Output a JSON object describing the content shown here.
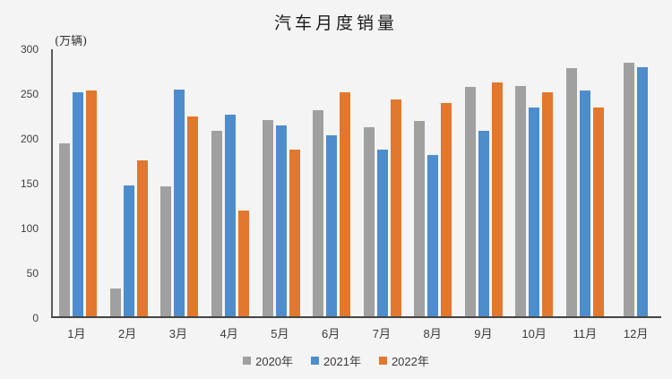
{
  "chart_data": {
    "type": "bar",
    "title": "汽车月度销量",
    "unit_label": "(万辆)",
    "categories": [
      "1月",
      "2月",
      "3月",
      "4月",
      "5月",
      "6月",
      "7月",
      "8月",
      "9月",
      "10月",
      "11月",
      "12月"
    ],
    "series": [
      {
        "name": "2020年",
        "color": "#A0A0A0",
        "values": [
          193,
          31,
          145,
          207,
          219,
          230,
          211,
          218,
          256,
          257,
          277,
          283
        ]
      },
      {
        "name": "2021年",
        "color": "#4E8DCB",
        "values": [
          250,
          146,
          253,
          225,
          213,
          202,
          186,
          180,
          207,
          233,
          252,
          278
        ]
      },
      {
        "name": "2022年",
        "color": "#E2772E",
        "values": [
          252,
          174,
          223,
          118,
          186,
          250,
          242,
          238,
          261,
          250,
          233,
          null
        ]
      }
    ],
    "ylim": [
      0,
      300
    ],
    "ytick_step": 50,
    "yticks": [
      0,
      50,
      100,
      150,
      200,
      250,
      300
    ],
    "grid": false,
    "legend_position": "bottom-center",
    "colors": {
      "background": "#F4F4F4",
      "axis": "#4a4a4a",
      "tick_text": "#3f3f3f",
      "title_text": "#1a1a1a"
    }
  }
}
